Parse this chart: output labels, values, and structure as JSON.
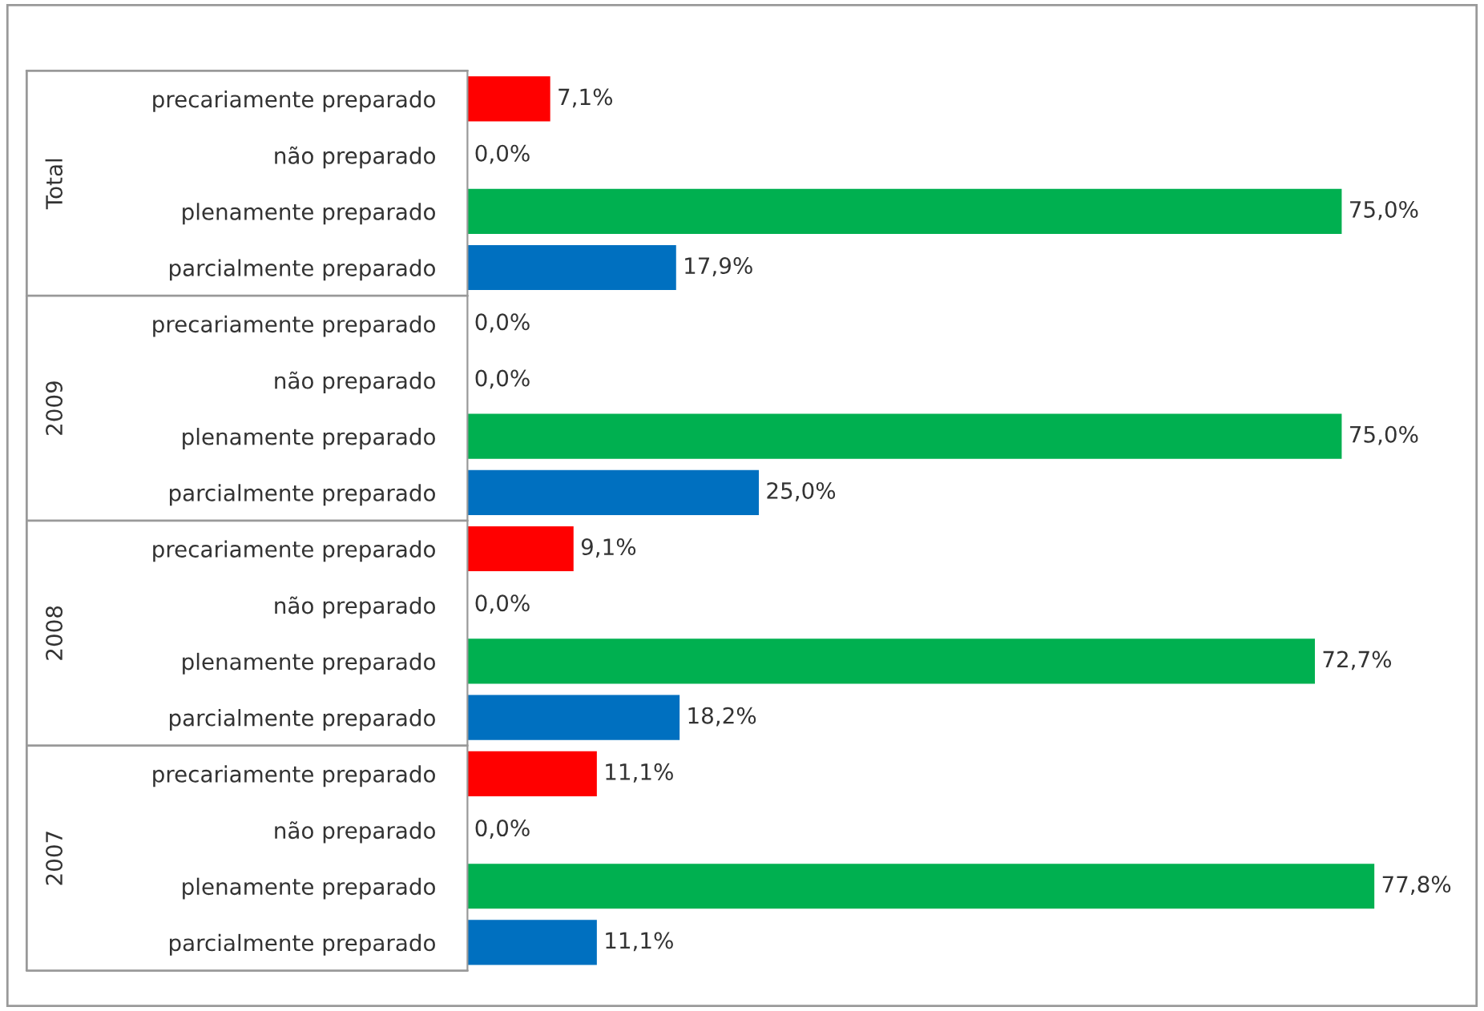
{
  "chart_data": {
    "type": "bar",
    "orientation": "horizontal",
    "categories": [
      "precariamente preparado",
      "não preparado",
      "plenamente preparado",
      "parcialmente preparado",
      "precariamente preparado",
      "não preparado",
      "plenamente preparado",
      "parcialmente preparado",
      "precariamente preparado",
      "não preparado",
      "plenamente preparado",
      "parcialmente preparado",
      "precariamente preparado",
      "não preparado",
      "plenamente preparado",
      "parcialmente preparado"
    ],
    "values": [
      7.1,
      0.0,
      75.0,
      17.9,
      0.0,
      0.0,
      75.0,
      25.0,
      9.1,
      0.0,
      72.7,
      18.2,
      11.1,
      0.0,
      77.8,
      11.1
    ],
    "colors": [
      "#ff0000",
      "#b8b800",
      "#00b050",
      "#0070c0",
      "#c00000",
      "#b8b800",
      "#00b050",
      "#0070c0",
      "#ff0000",
      "#b8b800",
      "#00b050",
      "#0070c0",
      "#ff0000",
      "#b8b800",
      "#00b050",
      "#0070c0"
    ],
    "value_labels": [
      "7,1%",
      "0,0%",
      "75,0%",
      "17,9%",
      "0,0%",
      "0,0%",
      "75,0%",
      "25,0%",
      "9,1%",
      "0,0%",
      "72,7%",
      "18,2%",
      "11,1%",
      "0,0%",
      "77,8%",
      "11,1%"
    ],
    "annotations": [
      "Total",
      "2009",
      "2008",
      "2007"
    ]
  }
}
